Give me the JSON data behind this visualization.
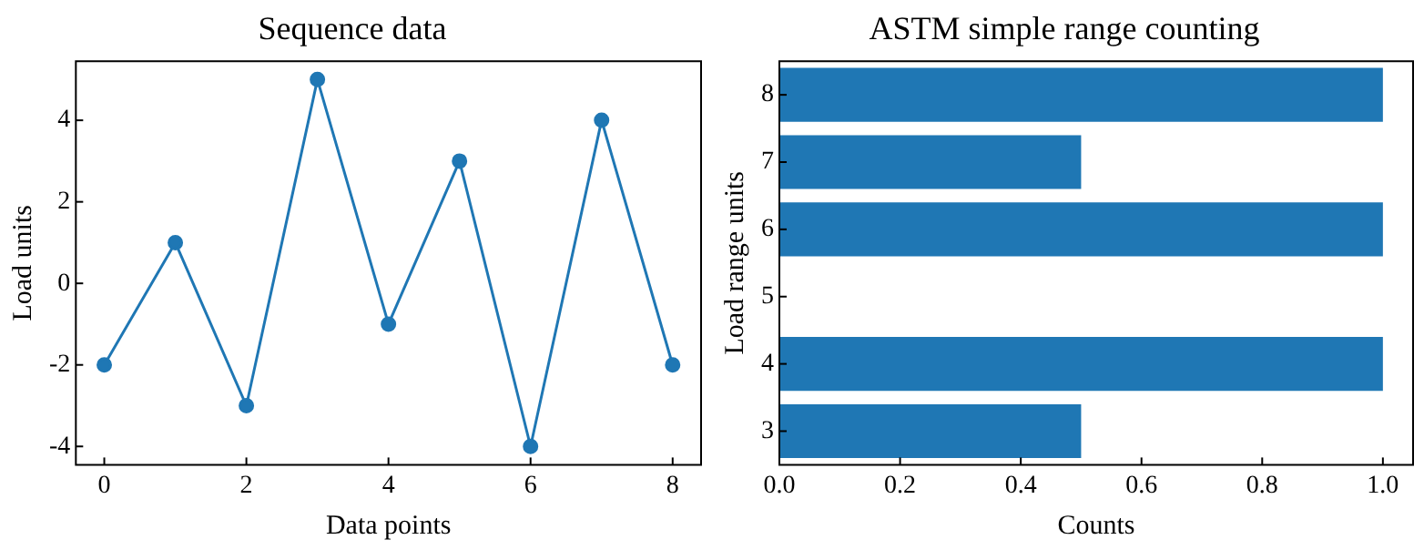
{
  "chart_data": [
    {
      "type": "line",
      "title": "Sequence data",
      "xlabel": "Data points",
      "ylabel": "Load units",
      "x": [
        0,
        1,
        2,
        3,
        4,
        5,
        6,
        7,
        8
      ],
      "series": [
        {
          "color": "#1f77b4",
          "values": [
            -2,
            1,
            -3,
            5,
            -1,
            3,
            -4,
            4,
            -2
          ]
        }
      ],
      "xlim": [
        -0.4,
        8.4
      ],
      "xticks": [
        0,
        2,
        4,
        6,
        8
      ],
      "ylim": [
        -4.45,
        5.45
      ],
      "yticks": [
        -4,
        -2,
        0,
        2,
        4
      ],
      "marker": "circle",
      "line_style": "solid",
      "grid": false,
      "legend": false
    },
    {
      "type": "bar",
      "orientation": "horizontal",
      "title": "ASTM simple range counting",
      "xlabel": "Counts",
      "ylabel": "Load range units",
      "categories": [
        "8",
        "7",
        "6",
        "5",
        "4",
        "3"
      ],
      "series": [
        {
          "color": "#1f77b4",
          "values": [
            1,
            0.5,
            1,
            null,
            1,
            0.5
          ]
        }
      ],
      "xlim": [
        0,
        1.05
      ],
      "xticks": [
        {
          "value": 0,
          "label": "0.0"
        },
        {
          "value": 0.2,
          "label": "0.2"
        },
        {
          "value": 0.4,
          "label": "0.4"
        },
        {
          "value": 0.6,
          "label": "0.6"
        },
        {
          "value": 0.8,
          "label": "0.8"
        },
        {
          "value": 1,
          "label": "1.0"
        }
      ],
      "grid": false,
      "legend": false
    }
  ]
}
